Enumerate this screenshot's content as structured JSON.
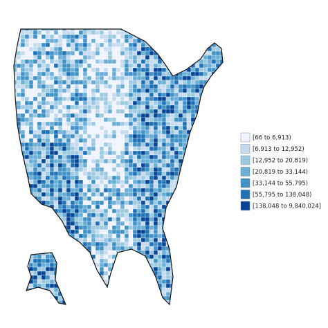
{
  "legend": {
    "items": [
      {
        "label": "[66 to 6,913)",
        "color": "#eff3ff"
      },
      {
        "label": "[6,913 to 12,952)",
        "color": "#c6dbef"
      },
      {
        "label": "[12,952 to 20,819)",
        "color": "#9ecae1"
      },
      {
        "label": "[20,819 to 33,144)",
        "color": "#6baed6"
      },
      {
        "label": "[33,144 to 55,795)",
        "color": "#4292c6"
      },
      {
        "label": "[55,795 to 138,048)",
        "color": "#2171b5"
      },
      {
        "label": "[138,048 to 9,840,024]",
        "color": "#084594"
      }
    ]
  }
}
